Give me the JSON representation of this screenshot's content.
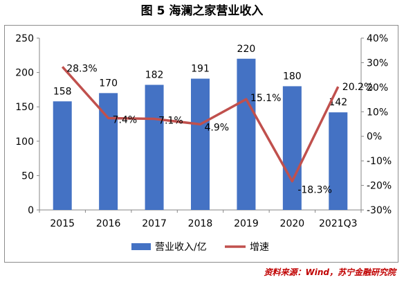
{
  "title": "图 5  海澜之家营业收入",
  "source": "资料来源：Wind，苏宁金融研究院",
  "colors": {
    "bar": "#4472c4",
    "line": "#c0504d"
  },
  "chart_data": {
    "type": "bar",
    "categories": [
      "2015",
      "2016",
      "2017",
      "2018",
      "2019",
      "2020",
      "2021Q3"
    ],
    "series": [
      {
        "name": "营业收入/亿",
        "type": "bar",
        "axis": "left",
        "values": [
          158,
          170,
          182,
          191,
          220,
          180,
          142
        ],
        "labels": [
          "158",
          "170",
          "182",
          "191",
          "220",
          "180",
          "142"
        ]
      },
      {
        "name": "增速",
        "type": "line",
        "axis": "right",
        "values": [
          28.3,
          7.4,
          7.1,
          4.9,
          15.1,
          -18.3,
          20.2
        ],
        "labels": [
          "28.3%",
          "7.4%",
          "7.1%",
          "4.9%",
          "15.1%",
          "-18.3%",
          "20.2%"
        ]
      }
    ],
    "ylim_left": [
      0,
      250
    ],
    "yticks_left": [
      "0",
      "50",
      "100",
      "150",
      "200",
      "250"
    ],
    "ylim_right": [
      -30,
      40
    ],
    "yticks_right": [
      "-30%",
      "-20%",
      "-10%",
      "0%",
      "10%",
      "20%",
      "30%",
      "40%"
    ],
    "grid": false,
    "legend": "bottom"
  }
}
